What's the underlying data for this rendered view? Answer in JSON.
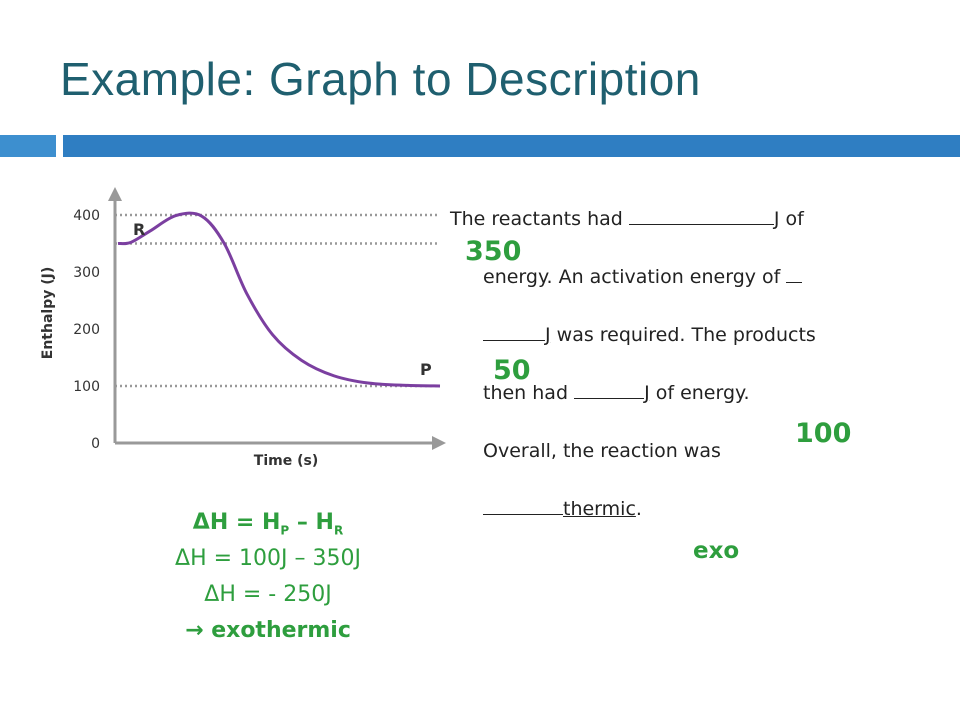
{
  "slide": {
    "title": "Example: Graph to Description"
  },
  "chart_data": {
    "type": "line",
    "xlabel": "Time (s)",
    "ylabel": "Enthalpy (J)",
    "ylim": [
      0,
      400
    ],
    "yticks": [
      0,
      100,
      200,
      300,
      400
    ],
    "grid": "dotted reference lines at 400, 350 and 100",
    "reference_lines": [
      400,
      350,
      100
    ],
    "annotations": [
      {
        "text": "R",
        "at_y": 350
      },
      {
        "text": "P",
        "at_y": 100
      }
    ],
    "series": [
      {
        "x": [
          0,
          0.04,
          0.1,
          0.18,
          0.26,
          0.33,
          0.4,
          0.48,
          0.57,
          0.67,
          0.78,
          0.9,
          1.0
        ],
        "values": [
          350,
          352,
          372,
          399,
          398,
          350,
          262,
          190,
          145,
          118,
          105,
          101,
          100
        ]
      }
    ],
    "color": "#7b3fa0"
  },
  "paragraph": {
    "l1a": "The reactants had ",
    "l1b": "J",
    "l1c": " of",
    "l2a": "energy.  An activation energy of ",
    "l3b": "J",
    "l3c": " was required.  The products",
    "l4a": "then had ",
    "l4b": "J",
    "l4c": " of energy.",
    "l5": "Overall, the reaction was",
    "l6b": "thermic",
    "l6c": "."
  },
  "answers": {
    "a350": "350",
    "a50": "50",
    "a100": "100",
    "exo": "exo"
  },
  "calc": {
    "l1_dh": "ΔH = H",
    "l1_p": "P",
    "l1_mid": " – H",
    "l1_r": "R",
    "l2": "ΔH = 100J – 350J",
    "l3": "ΔH = - 250J",
    "l4": " exothermic",
    "arrow": "→"
  },
  "colors": {
    "title": "#1f5f6f",
    "accent_bar": "#2f7ec2",
    "answer_green": "#2e9e3e",
    "curve": "#7b3fa0"
  }
}
